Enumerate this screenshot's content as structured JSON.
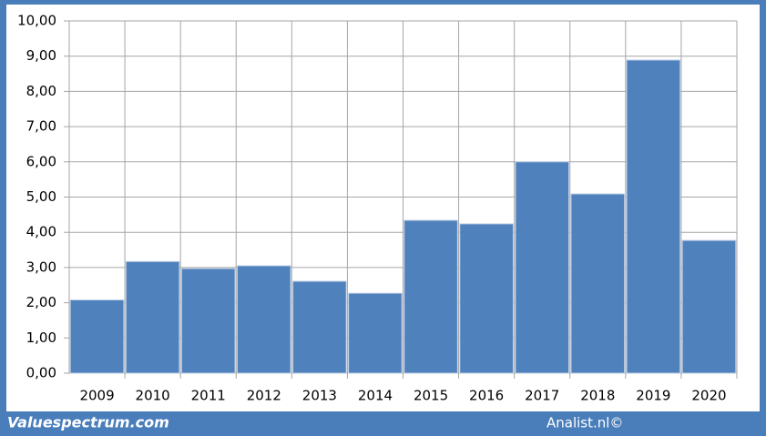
{
  "chart_data": {
    "type": "bar",
    "categories": [
      "2009",
      "2010",
      "2011",
      "2012",
      "2013",
      "2014",
      "2015",
      "2016",
      "2017",
      "2018",
      "2019",
      "2020"
    ],
    "values": [
      2.08,
      3.17,
      2.97,
      3.05,
      2.61,
      2.27,
      4.34,
      4.24,
      6.0,
      5.09,
      8.89,
      3.77
    ],
    "color": "#4f81bd",
    "ylim": [
      0,
      10
    ],
    "yticks": [
      {
        "value": 0,
        "label": "0,00"
      },
      {
        "value": 1,
        "label": "1,00"
      },
      {
        "value": 2,
        "label": "2,00"
      },
      {
        "value": 3,
        "label": "3,00"
      },
      {
        "value": 4,
        "label": "4,00"
      },
      {
        "value": 5,
        "label": "5,00"
      },
      {
        "value": 6,
        "label": "6,00"
      },
      {
        "value": 7,
        "label": "7,00"
      },
      {
        "value": 8,
        "label": "8,00"
      },
      {
        "value": 9,
        "label": "9,00"
      },
      {
        "value": 10,
        "label": "10,00"
      }
    ],
    "grid": true
  },
  "footer": {
    "site": "Valuespectrum.com",
    "credit": "Analist.nl©"
  }
}
